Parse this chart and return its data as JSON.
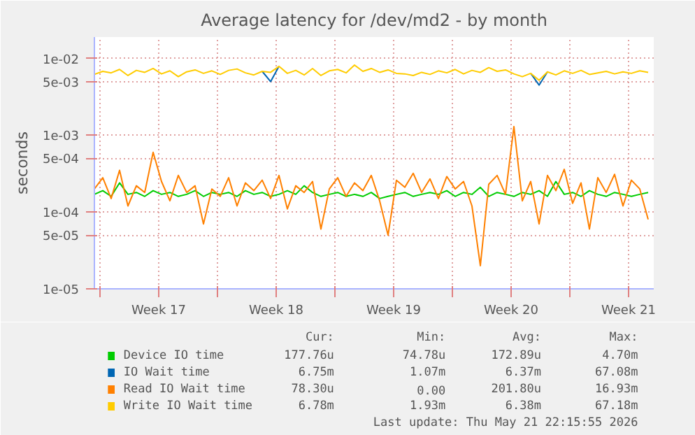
{
  "chart_data": {
    "type": "line",
    "title": "Average latency for /dev/md2 - by month",
    "ylabel": "seconds",
    "log": "y",
    "grid": true,
    "legend": "bottom",
    "xlim": [
      "2026-04-19T16:00",
      "2026-05-23T00:00"
    ],
    "ylim": [
      1e-05,
      0.019
    ],
    "xticks": [
      {
        "value": "2026-04-20",
        "label": null
      },
      {
        "value": "2026-04-23T12:00",
        "label": "Week 17"
      },
      {
        "value": "2026-04-27",
        "label": null
      },
      {
        "value": "2026-04-30T12:00",
        "label": "Week 18"
      },
      {
        "value": "2026-05-04",
        "label": null
      },
      {
        "value": "2026-05-07T12:00",
        "label": "Week 19"
      },
      {
        "value": "2026-05-11",
        "label": null
      },
      {
        "value": "2026-05-14T12:00",
        "label": "Week 20"
      },
      {
        "value": "2026-05-18",
        "label": null
      },
      {
        "value": "2026-05-21T12:00",
        "label": "Week 21"
      }
    ],
    "yticks": [
      {
        "value": 0.01,
        "label": "1e-02"
      },
      {
        "value": 0.005,
        "label": "5e-03"
      },
      {
        "value": 0.001,
        "label": "1e-03"
      },
      {
        "value": 0.0005,
        "label": "5e-04"
      },
      {
        "value": 0.0001,
        "label": "1e-04"
      },
      {
        "value": 5e-05,
        "label": "5e-05"
      },
      {
        "value": 1e-05,
        "label": "1e-05"
      }
    ],
    "x": [
      "2026-04-19T16:00",
      "2026-04-20T04:00",
      "2026-04-20T16:00",
      "2026-04-21T04:00",
      "2026-04-21T16:00",
      "2026-04-22T04:00",
      "2026-04-22T16:00",
      "2026-04-23T04:00",
      "2026-04-23T16:00",
      "2026-04-24T04:00",
      "2026-04-24T16:00",
      "2026-04-25T04:00",
      "2026-04-25T16:00",
      "2026-04-26T04:00",
      "2026-04-26T16:00",
      "2026-04-27T04:00",
      "2026-04-27T16:00",
      "2026-04-28T04:00",
      "2026-04-28T16:00",
      "2026-04-29T04:00",
      "2026-04-29T16:00",
      "2026-04-30T04:00",
      "2026-04-30T16:00",
      "2026-05-01T04:00",
      "2026-05-01T16:00",
      "2026-05-02T04:00",
      "2026-05-02T16:00",
      "2026-05-03T04:00",
      "2026-05-03T16:00",
      "2026-05-04T04:00",
      "2026-05-04T16:00",
      "2026-05-05T04:00",
      "2026-05-05T16:00",
      "2026-05-06T04:00",
      "2026-05-06T16:00",
      "2026-05-07T04:00",
      "2026-05-07T16:00",
      "2026-05-08T04:00",
      "2026-05-08T16:00",
      "2026-05-09T04:00",
      "2026-05-09T16:00",
      "2026-05-10T04:00",
      "2026-05-10T16:00",
      "2026-05-11T04:00",
      "2026-05-11T16:00",
      "2026-05-12T04:00",
      "2026-05-12T16:00",
      "2026-05-13T04:00",
      "2026-05-13T16:00",
      "2026-05-14T04:00",
      "2026-05-14T16:00",
      "2026-05-15T04:00",
      "2026-05-15T16:00",
      "2026-05-16T04:00",
      "2026-05-16T16:00",
      "2026-05-17T04:00",
      "2026-05-17T16:00",
      "2026-05-18T04:00",
      "2026-05-18T16:00",
      "2026-05-19T04:00",
      "2026-05-19T16:00",
      "2026-05-20T04:00",
      "2026-05-20T16:00",
      "2026-05-21T04:00",
      "2026-05-21T16:00",
      "2026-05-22T04:00",
      "2026-05-22T16:00"
    ],
    "series": [
      {
        "name": "Device IO time",
        "color": "#00cc00",
        "values": [
          0.00017,
          0.00019,
          0.00016,
          0.00024,
          0.00017,
          0.00018,
          0.00016,
          0.00019,
          0.00017,
          0.00018,
          0.00016,
          0.00017,
          0.00019,
          0.00016,
          0.00018,
          0.00017,
          0.00018,
          0.00016,
          0.00019,
          0.00017,
          0.00018,
          0.00016,
          0.00017,
          0.00019,
          0.00017,
          0.00022,
          0.00018,
          0.00016,
          0.00017,
          0.00018,
          0.00016,
          0.00017,
          0.00016,
          0.00018,
          0.00015,
          0.00016,
          0.00017,
          0.00018,
          0.00016,
          0.00017,
          0.00018,
          0.00017,
          0.00019,
          0.00016,
          0.00018,
          0.00017,
          0.00021,
          0.00016,
          0.00018,
          0.00017,
          0.00016,
          0.00018,
          0.00017,
          0.00019,
          0.00016,
          0.00025,
          0.00017,
          0.00018,
          0.00016,
          0.00019,
          0.00017,
          0.00016,
          0.00018,
          0.00017,
          0.00016,
          0.00017,
          0.00018
        ]
      },
      {
        "name": "IO Wait time",
        "color": "#0066b3",
        "values": [
          null,
          null,
          null,
          null,
          null,
          null,
          null,
          null,
          null,
          null,
          null,
          null,
          null,
          null,
          null,
          null,
          null,
          null,
          null,
          null,
          0.0068,
          0.005,
          0.0079,
          null,
          null,
          null,
          null,
          null,
          null,
          null,
          null,
          null,
          null,
          null,
          null,
          null,
          null,
          null,
          null,
          null,
          null,
          null,
          null,
          null,
          null,
          null,
          null,
          null,
          null,
          null,
          null,
          null,
          0.0064,
          0.0045,
          0.0067,
          null,
          null,
          null,
          null,
          null,
          null,
          null,
          null,
          null,
          null,
          null,
          null
        ]
      },
      {
        "name": "Read IO Wait time",
        "color": "#ff8000",
        "values": [
          0.0002,
          0.00028,
          0.00015,
          0.00035,
          0.00012,
          0.00022,
          0.00018,
          0.0006,
          0.00025,
          0.00014,
          0.0003,
          0.00018,
          0.00022,
          7e-05,
          0.0002,
          0.00016,
          0.00028,
          0.00012,
          0.00024,
          0.00019,
          0.00026,
          0.00015,
          0.0003,
          0.00011,
          0.00022,
          0.00018,
          0.00025,
          6e-05,
          0.0002,
          0.00028,
          0.00016,
          0.00024,
          0.00019,
          0.0003,
          0.00014,
          5e-05,
          0.00026,
          0.00021,
          0.00032,
          0.00018,
          0.00027,
          0.00015,
          0.00029,
          0.0002,
          0.00025,
          0.00012,
          2e-05,
          0.00023,
          0.0003,
          0.00017,
          0.0013,
          0.00014,
          0.00025,
          7e-05,
          0.0003,
          0.00019,
          0.00036,
          0.00013,
          0.00024,
          6e-05,
          0.00028,
          0.00018,
          0.00031,
          0.00012,
          0.00026,
          0.0002,
          8e-05
        ]
      },
      {
        "name": "Write IO Wait time",
        "color": "#ffcc00",
        "values": [
          0.0062,
          0.0068,
          0.0065,
          0.0072,
          0.006,
          0.007,
          0.0066,
          0.0074,
          0.0063,
          0.0069,
          0.0058,
          0.0067,
          0.0071,
          0.0064,
          0.0069,
          0.0062,
          0.007,
          0.0073,
          0.0065,
          0.0061,
          0.0068,
          0.0066,
          0.0079,
          0.0064,
          0.007,
          0.0061,
          0.0074,
          0.006,
          0.0069,
          0.0072,
          0.0065,
          0.0082,
          0.0068,
          0.0074,
          0.0066,
          0.0071,
          0.0064,
          0.0063,
          0.006,
          0.0066,
          0.0062,
          0.0069,
          0.0065,
          0.0072,
          0.0063,
          0.007,
          0.0066,
          0.0076,
          0.0068,
          0.0071,
          0.0063,
          0.0058,
          0.0064,
          0.0052,
          0.0067,
          0.0061,
          0.0069,
          0.0064,
          0.007,
          0.0062,
          0.0065,
          0.0068,
          0.0063,
          0.0067,
          0.0064,
          0.0069,
          0.0066
        ]
      }
    ],
    "annotations": [
      "Cur:",
      "Min:",
      "Avg:",
      "Max:",
      "177.76u",
      "74.78u",
      "172.89u",
      "4.70m",
      "6.75m",
      "1.07m",
      "6.37m",
      "67.08m",
      "78.30u",
      "0.00",
      "201.80u",
      "16.93m",
      "6.78m",
      "1.93m",
      "6.38m",
      "67.18m",
      "Last update: Thu May 21 22:15:55 2026"
    ]
  }
}
